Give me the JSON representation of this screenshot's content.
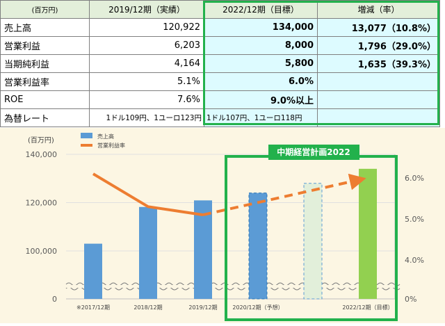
{
  "table": {
    "headers": [
      "(百万円)",
      "2019/12期（実績）",
      "2022/12期（目標）",
      "増減（率）"
    ],
    "rows": [
      {
        "label": "売上高",
        "actual": "120,922",
        "target": "134,000",
        "change": "13,077（10.8%）"
      },
      {
        "label": "営業利益",
        "actual": "6,203",
        "target": "8,000",
        "change": "1,796（29.0%）"
      },
      {
        "label": "当期純利益",
        "actual": "4,164",
        "target": "5,800",
        "change": "1,635（39.3%）"
      },
      {
        "label": "営業利益率",
        "actual": "5.1%",
        "target": "6.0%",
        "change": ""
      },
      {
        "label": "ROE",
        "actual": "7.6%",
        "target": "9.0%以上",
        "change": ""
      },
      {
        "label": "為替レート",
        "actual": "1ドル109円、1ユーロ123円",
        "target": "1ドル107円、1ユーロ118円",
        "change": ""
      }
    ]
  },
  "chart_data": {
    "type": "bar",
    "unit_label": "(百万円)",
    "categories": [
      "※2017/12期",
      "2018/12期",
      "2019/12期",
      "2020/12期（予想）",
      "",
      "2022/12期（目標）"
    ],
    "series": [
      {
        "name": "売上高",
        "axis": "left",
        "values": [
          103000,
          118200,
          120922,
          124000,
          128000,
          134000
        ],
        "styles": [
          "actual",
          "actual",
          "actual",
          "forecast",
          "plan",
          "target"
        ]
      },
      {
        "name": "営業利益率",
        "axis": "right",
        "values": [
          6.1,
          5.3,
          5.1,
          5.4,
          5.7,
          6.0
        ],
        "styles": [
          "solid",
          "solid",
          "solid",
          "dashed",
          "dashed",
          "dashed"
        ]
      }
    ],
    "left_axis": {
      "ticks": [
        "140,000",
        "120,000",
        "100,000",
        "0"
      ],
      "broken": true
    },
    "right_axis": {
      "ticks": [
        "6.0%",
        "5.0%",
        "4.0%",
        "0%"
      ]
    },
    "plan_box_label": "中期経営計画2022",
    "colors": {
      "actual": "#5b9bd5",
      "target": "#92d050",
      "plan_fill": "#e2efda",
      "line": "#ed7d31",
      "frame": "#22b14c"
    }
  }
}
